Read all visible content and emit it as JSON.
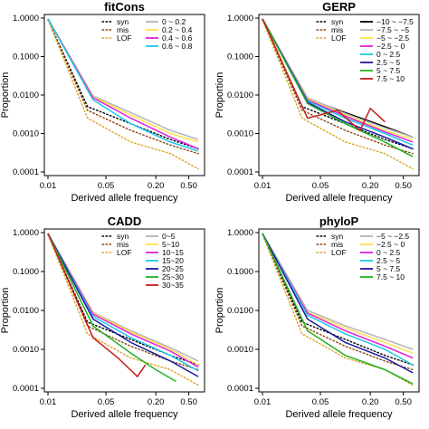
{
  "chart_data": [
    {
      "type": "line",
      "title": "fitCons",
      "xlabel": "Derived allele frequency",
      "ylabel": "Proportion",
      "x_scale": "log",
      "y_scale": "log",
      "xlim": [
        0.01,
        0.7
      ],
      "ylim": [
        0.0001,
        1.0
      ],
      "x_ticks": [
        "0.01",
        "0.05",
        "0.20",
        "0.50"
      ],
      "y_ticks": [
        "1.0000",
        "0.1000",
        "0.0100",
        "0.0010",
        "0.0001"
      ],
      "legend_position": "top-right",
      "reference": [
        {
          "name": "syn",
          "style": "dotted",
          "color": "#000000",
          "values": [
            [
              0.01,
              0.9
            ],
            [
              0.03,
              0.005
            ],
            [
              0.1,
              0.0018
            ],
            [
              0.3,
              0.0007
            ],
            [
              0.65,
              0.0004
            ]
          ]
        },
        {
          "name": "mis",
          "style": "dotted",
          "color": "#8b4513",
          "values": [
            [
              0.01,
              0.9
            ],
            [
              0.03,
              0.004
            ],
            [
              0.1,
              0.0012
            ],
            [
              0.3,
              0.0005
            ],
            [
              0.65,
              0.0003
            ]
          ]
        },
        {
          "name": "LOF",
          "style": "dotted",
          "color": "#daa520",
          "values": [
            [
              0.01,
              0.9
            ],
            [
              0.03,
              0.0025
            ],
            [
              0.1,
              0.0006
            ],
            [
              0.3,
              0.0003
            ],
            [
              0.65,
              0.00012
            ]
          ]
        }
      ],
      "series": [
        {
          "name": "0 ~ 0.2",
          "color": "#b5b5b5",
          "values": [
            [
              0.01,
              0.95
            ],
            [
              0.035,
              0.0095
            ],
            [
              0.1,
              0.0035
            ],
            [
              0.3,
              0.0012
            ],
            [
              0.65,
              0.0007
            ]
          ]
        },
        {
          "name": "0.2 ~ 0.4",
          "color": "#ffe14d",
          "values": [
            [
              0.01,
              0.95
            ],
            [
              0.035,
              0.009
            ],
            [
              0.1,
              0.003
            ],
            [
              0.3,
              0.001
            ],
            [
              0.65,
              0.0006
            ]
          ]
        },
        {
          "name": "0.4 ~ 0.6",
          "color": "#e020e0",
          "values": [
            [
              0.01,
              0.95
            ],
            [
              0.035,
              0.0085
            ],
            [
              0.1,
              0.0025
            ],
            [
              0.3,
              0.0008
            ],
            [
              0.65,
              0.0004
            ]
          ]
        },
        {
          "name": "0.6 ~ 0.8",
          "color": "#1ec8e8",
          "values": [
            [
              0.01,
              0.95
            ],
            [
              0.035,
              0.0075
            ],
            [
              0.1,
              0.0018
            ],
            [
              0.3,
              0.0006
            ],
            [
              0.65,
              0.00035
            ]
          ]
        }
      ]
    },
    {
      "type": "line",
      "title": "GERP",
      "xlabel": "Derived allele frequency",
      "ylabel": "Proportion",
      "x_scale": "log",
      "y_scale": "log",
      "xlim": [
        0.01,
        0.7
      ],
      "ylim": [
        0.0001,
        1.0
      ],
      "x_ticks": [
        "0.01",
        "0.05",
        "0.20",
        "0.50"
      ],
      "y_ticks": [
        "1.0000",
        "0.1000",
        "0.0100",
        "0.0010",
        "0.0001"
      ],
      "legend_position": "top-right",
      "reference": [
        {
          "name": "syn",
          "style": "dotted",
          "color": "#000000",
          "values": [
            [
              0.01,
              0.9
            ],
            [
              0.03,
              0.005
            ],
            [
              0.1,
              0.0018
            ],
            [
              0.3,
              0.0007
            ],
            [
              0.65,
              0.0004
            ]
          ]
        },
        {
          "name": "mis",
          "style": "dotted",
          "color": "#8b4513",
          "values": [
            [
              0.01,
              0.9
            ],
            [
              0.03,
              0.004
            ],
            [
              0.1,
              0.0012
            ],
            [
              0.3,
              0.0005
            ],
            [
              0.65,
              0.0003
            ]
          ]
        },
        {
          "name": "LOF",
          "style": "dotted",
          "color": "#daa520",
          "values": [
            [
              0.01,
              0.9
            ],
            [
              0.03,
              0.0025
            ],
            [
              0.1,
              0.0006
            ],
            [
              0.3,
              0.0003
            ],
            [
              0.65,
              0.00012
            ]
          ]
        }
      ],
      "series": [
        {
          "name": "−10 ~ −7.5",
          "color": "#000000",
          "values": [
            [
              0.01,
              0.95
            ],
            [
              0.035,
              0.008
            ],
            [
              0.1,
              0.0035
            ],
            [
              0.3,
              0.0015
            ],
            [
              0.65,
              0.0008
            ]
          ]
        },
        {
          "name": "−7.5 ~ −5",
          "color": "#b5b5b5",
          "values": [
            [
              0.01,
              0.95
            ],
            [
              0.035,
              0.0085
            ],
            [
              0.1,
              0.0033
            ],
            [
              0.3,
              0.0014
            ],
            [
              0.65,
              0.0008
            ]
          ]
        },
        {
          "name": "−5 ~ −2.5",
          "color": "#ffe14d",
          "values": [
            [
              0.01,
              0.95
            ],
            [
              0.035,
              0.008
            ],
            [
              0.1,
              0.003
            ],
            [
              0.3,
              0.0012
            ],
            [
              0.65,
              0.0007
            ]
          ]
        },
        {
          "name": "−2.5 ~ 0",
          "color": "#e020e0",
          "values": [
            [
              0.01,
              0.95
            ],
            [
              0.035,
              0.0075
            ],
            [
              0.1,
              0.0028
            ],
            [
              0.3,
              0.0011
            ],
            [
              0.65,
              0.0006
            ]
          ]
        },
        {
          "name": "0 ~ 2.5",
          "color": "#1ec8e8",
          "values": [
            [
              0.01,
              0.95
            ],
            [
              0.035,
              0.007
            ],
            [
              0.1,
              0.0025
            ],
            [
              0.3,
              0.001
            ],
            [
              0.65,
              0.0005
            ]
          ]
        },
        {
          "name": "2.5 ~ 5",
          "color": "#1a1aa0",
          "values": [
            [
              0.01,
              0.95
            ],
            [
              0.035,
              0.0065
            ],
            [
              0.1,
              0.002
            ],
            [
              0.3,
              0.0008
            ],
            [
              0.65,
              0.0004
            ]
          ]
        },
        {
          "name": "5 ~ 7.5",
          "color": "#22b022",
          "values": [
            [
              0.01,
              0.95
            ],
            [
              0.035,
              0.006
            ],
            [
              0.1,
              0.0018
            ],
            [
              0.3,
              0.0006
            ],
            [
              0.65,
              0.00025
            ]
          ]
        },
        {
          "name": "7.5 ~ 10",
          "color": "#c41e1e",
          "values": [
            [
              0.01,
              0.95
            ],
            [
              0.035,
              0.0025
            ],
            [
              0.08,
              0.004
            ],
            [
              0.15,
              0.0012
            ],
            [
              0.2,
              0.0045
            ],
            [
              0.3,
              0.002
            ]
          ]
        }
      ]
    },
    {
      "type": "line",
      "title": "CADD",
      "xlabel": "Derived allele frequency",
      "ylabel": "Proportion",
      "x_scale": "log",
      "y_scale": "log",
      "xlim": [
        0.01,
        0.7
      ],
      "ylim": [
        0.0001,
        1.0
      ],
      "x_ticks": [
        "0.01",
        "0.05",
        "0.20",
        "0.50"
      ],
      "y_ticks": [
        "1.0000",
        "0.1000",
        "0.0100",
        "0.0010",
        "0.0001"
      ],
      "legend_position": "top-right",
      "reference": [
        {
          "name": "syn",
          "style": "dotted",
          "color": "#000000",
          "values": [
            [
              0.01,
              0.9
            ],
            [
              0.03,
              0.005
            ],
            [
              0.1,
              0.0018
            ],
            [
              0.3,
              0.0007
            ],
            [
              0.65,
              0.0004
            ]
          ]
        },
        {
          "name": "mis",
          "style": "dotted",
          "color": "#8b4513",
          "values": [
            [
              0.01,
              0.9
            ],
            [
              0.03,
              0.004
            ],
            [
              0.1,
              0.0012
            ],
            [
              0.3,
              0.0005
            ],
            [
              0.65,
              0.0003
            ]
          ]
        },
        {
          "name": "LOF",
          "style": "dotted",
          "color": "#daa520",
          "values": [
            [
              0.01,
              0.9
            ],
            [
              0.03,
              0.0025
            ],
            [
              0.1,
              0.0006
            ],
            [
              0.3,
              0.0003
            ],
            [
              0.65,
              0.00012
            ]
          ]
        }
      ],
      "series": [
        {
          "name": "0~5",
          "color": "#b5b5b5",
          "values": [
            [
              0.01,
              0.95
            ],
            [
              0.035,
              0.009
            ],
            [
              0.1,
              0.003
            ],
            [
              0.3,
              0.0011
            ],
            [
              0.65,
              0.0005
            ]
          ]
        },
        {
          "name": "5~10",
          "color": "#ffe14d",
          "values": [
            [
              0.01,
              0.95
            ],
            [
              0.035,
              0.0085
            ],
            [
              0.1,
              0.0028
            ],
            [
              0.3,
              0.001
            ],
            [
              0.65,
              0.0004
            ]
          ]
        },
        {
          "name": "10~15",
          "color": "#e020e0",
          "values": [
            [
              0.01,
              0.95
            ],
            [
              0.035,
              0.008
            ],
            [
              0.1,
              0.0025
            ],
            [
              0.3,
              0.0009
            ],
            [
              0.65,
              0.00035
            ]
          ]
        },
        {
          "name": "15~20",
          "color": "#1ec8e8",
          "values": [
            [
              0.01,
              0.95
            ],
            [
              0.035,
              0.007
            ],
            [
              0.1,
              0.002
            ],
            [
              0.3,
              0.0007
            ],
            [
              0.65,
              0.00028
            ]
          ]
        },
        {
          "name": "20~25",
          "color": "#1a1aa0",
          "values": [
            [
              0.01,
              0.95
            ],
            [
              0.035,
              0.006
            ],
            [
              0.1,
              0.0015
            ],
            [
              0.3,
              0.0005
            ],
            [
              0.65,
              0.0002
            ]
          ]
        },
        {
          "name": "25~30",
          "color": "#22b022",
          "values": [
            [
              0.01,
              0.95
            ],
            [
              0.035,
              0.004
            ],
            [
              0.1,
              0.0008
            ],
            [
              0.2,
              0.0003
            ],
            [
              0.35,
              0.00015
            ]
          ]
        },
        {
          "name": "30~35",
          "color": "#c41e1e",
          "values": [
            [
              0.01,
              0.95
            ],
            [
              0.035,
              0.002
            ],
            [
              0.07,
              0.0006
            ],
            [
              0.12,
              0.0002
            ],
            [
              0.15,
              0.0004
            ]
          ]
        }
      ]
    },
    {
      "type": "line",
      "title": "phyloP",
      "xlabel": "Derived allele frequency",
      "ylabel": "Proportion",
      "x_scale": "log",
      "y_scale": "log",
      "xlim": [
        0.01,
        0.7
      ],
      "ylim": [
        0.0001,
        1.0
      ],
      "x_ticks": [
        "0.01",
        "0.05",
        "0.20",
        "0.50"
      ],
      "y_ticks": [
        "1.0000",
        "0.1000",
        "0.0100",
        "0.0010",
        "0.0001"
      ],
      "legend_position": "top-right",
      "reference": [
        {
          "name": "syn",
          "style": "dotted",
          "color": "#000000",
          "values": [
            [
              0.01,
              0.9
            ],
            [
              0.03,
              0.005
            ],
            [
              0.1,
              0.0018
            ],
            [
              0.3,
              0.0007
            ],
            [
              0.65,
              0.0004
            ]
          ]
        },
        {
          "name": "mis",
          "style": "dotted",
          "color": "#8b4513",
          "values": [
            [
              0.01,
              0.9
            ],
            [
              0.03,
              0.004
            ],
            [
              0.1,
              0.0012
            ],
            [
              0.3,
              0.0005
            ],
            [
              0.65,
              0.0003
            ]
          ]
        },
        {
          "name": "LOF",
          "style": "dotted",
          "color": "#daa520",
          "values": [
            [
              0.01,
              0.9
            ],
            [
              0.03,
              0.0025
            ],
            [
              0.1,
              0.0006
            ],
            [
              0.3,
              0.0003
            ],
            [
              0.65,
              0.00012
            ]
          ]
        }
      ],
      "series": [
        {
          "name": "−5 ~ −2.5",
          "color": "#b5b5b5",
          "values": [
            [
              0.01,
              0.95
            ],
            [
              0.035,
              0.01
            ],
            [
              0.1,
              0.004
            ],
            [
              0.3,
              0.0018
            ],
            [
              0.65,
              0.001
            ]
          ]
        },
        {
          "name": "−2.5 ~ 0",
          "color": "#ffe14d",
          "values": [
            [
              0.01,
              0.95
            ],
            [
              0.035,
              0.009
            ],
            [
              0.1,
              0.0035
            ],
            [
              0.3,
              0.0015
            ],
            [
              0.65,
              0.0008
            ]
          ]
        },
        {
          "name": "0 ~ 2.5",
          "color": "#e020e0",
          "values": [
            [
              0.01,
              0.95
            ],
            [
              0.035,
              0.0085
            ],
            [
              0.1,
              0.003
            ],
            [
              0.3,
              0.0012
            ],
            [
              0.65,
              0.0006
            ]
          ]
        },
        {
          "name": "2.5 ~ 5",
          "color": "#1ec8e8",
          "values": [
            [
              0.01,
              0.95
            ],
            [
              0.035,
              0.0075
            ],
            [
              0.1,
              0.0025
            ],
            [
              0.3,
              0.001
            ],
            [
              0.65,
              0.0004
            ]
          ]
        },
        {
          "name": "5 ~ 7.5",
          "color": "#1a1aa0",
          "values": [
            [
              0.01,
              0.95
            ],
            [
              0.035,
              0.006
            ],
            [
              0.1,
              0.0015
            ],
            [
              0.3,
              0.0006
            ],
            [
              0.65,
              0.00025
            ]
          ]
        },
        {
          "name": "7.5 ~ 10",
          "color": "#22b022",
          "values": [
            [
              0.01,
              0.95
            ],
            [
              0.035,
              0.003
            ],
            [
              0.1,
              0.0007
            ],
            [
              0.3,
              0.0003
            ],
            [
              0.65,
              0.00013
            ]
          ]
        }
      ]
    }
  ]
}
